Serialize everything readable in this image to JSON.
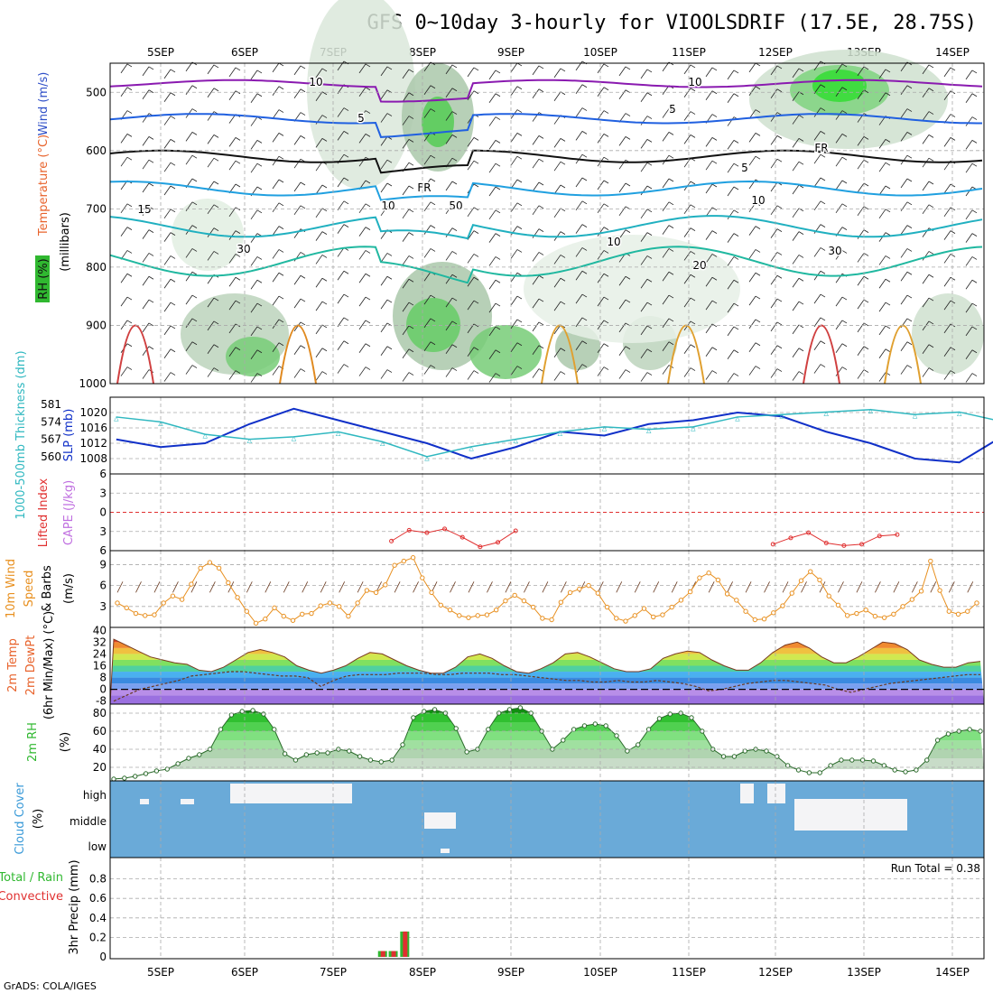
{
  "title": "GFS 0~10day 3-hourly for VIOOLSDRIF (17.5E, 28.75S)",
  "credit": "GrADS: COLA/IGES",
  "run_total": "Run Total = 0.38",
  "colors": {
    "frame": "#000000",
    "grid": "#a0a0a0",
    "temp_label": "#e8632c",
    "wind_label": "#3050c8",
    "rh_label": "#30b830",
    "slp": "#1030c8",
    "thickness": "#30b8c0",
    "cape": "#c070e0",
    "lifted": "#e03030",
    "wind10": "#e89020",
    "cloud": "#6aaad8",
    "rain_total": "#30b830",
    "rain_conv": "#e03030"
  },
  "chart_data": [
    {
      "panel": "upper-air",
      "type": "heatmap",
      "days": [
        "5SEP",
        "6SEP",
        "7SEP",
        "8SEP",
        "9SEP",
        "10SEP",
        "11SEP",
        "12SEP",
        "13SEP",
        "14SEP"
      ],
      "ylabel_parts": [
        "Wind (m/s)",
        "Temperature (°C)",
        "RH (%)",
        "(millibars)"
      ],
      "ylabel_wind": "Wind (m/s)",
      "ylabel_temp": "Temperature (°C)",
      "ylabel_rh": "RH (%)",
      "ylabel_p": "(millibars)",
      "yticks": [
        "500",
        "600",
        "700",
        "800",
        "900",
        "1000"
      ],
      "ylim": [
        1000,
        450
      ],
      "contour_labels": [
        "10",
        "10",
        "5",
        "5",
        "FR",
        "FR",
        "5",
        "10",
        "10",
        "15",
        "20",
        "30",
        "30",
        "10",
        "50"
      ]
    },
    {
      "panel": "slp-thickness",
      "type": "line",
      "ylabel_left": "1000-500mb Thickness (dm)",
      "ylabel_right": "SLP (mb)",
      "left_ticks": [
        "560",
        "567",
        "574",
        "581"
      ],
      "right_ticks": [
        "1008",
        "1012",
        "1016",
        "1020"
      ],
      "series": [
        {
          "name": "SLP (mb)",
          "x_days": [
            0,
            0.5,
            1,
            1.5,
            2,
            2.5,
            3,
            3.5,
            4,
            4.5,
            5,
            5.5,
            6,
            6.5,
            7,
            7.5,
            8,
            8.5,
            9,
            9.5,
            10
          ],
          "values": [
            1013,
            1011,
            1012,
            1017,
            1021,
            1018,
            1015,
            1012,
            1008,
            1011,
            1015,
            1014,
            1017,
            1018,
            1020,
            1019,
            1015,
            1012,
            1008,
            1007,
            1014
          ]
        },
        {
          "name": "1000-500mb Thickness (dm)",
          "x_days": [
            0,
            0.5,
            1,
            1.5,
            2,
            2.5,
            3,
            3.5,
            4,
            4.5,
            5,
            5.5,
            6,
            6.5,
            7,
            7.5,
            8,
            8.5,
            9,
            9.5,
            10
          ],
          "values": [
            576,
            574,
            569,
            567,
            568,
            570,
            566,
            560,
            564,
            567,
            570,
            572,
            571,
            572,
            576,
            577,
            578,
            579,
            577,
            578,
            574
          ]
        }
      ]
    },
    {
      "panel": "stability",
      "type": "line",
      "ylabel_lifted": "Lifted Index",
      "ylabel_cape": "CAPE (J/kg)",
      "yticks": [
        "-6",
        "-3",
        "0",
        "3",
        "6"
      ],
      "series": [
        {
          "name": "Lifted Index",
          "x_days": [
            3.1,
            3.3,
            3.5,
            3.7,
            3.9,
            4.1,
            4.3,
            4.5
          ],
          "values": [
            4.5,
            2.8,
            3.2,
            2.6,
            3.9,
            5.4,
            4.7,
            2.9
          ]
        },
        {
          "name": "Lifted Index",
          "x_days": [
            7.4,
            7.6,
            7.8,
            8.0,
            8.2,
            8.4,
            8.6,
            8.8
          ],
          "values": [
            5.0,
            4.0,
            3.2,
            4.8,
            5.2,
            5.0,
            3.7,
            3.5
          ]
        }
      ]
    },
    {
      "panel": "wind10",
      "type": "line",
      "ylabel": "10m Wind Speed & Barbs (m/s)",
      "ylabel_a": "10m Wind",
      "ylabel_b": "Speed",
      "ylabel_c": "& Barbs",
      "ylabel_units": "(m/s)",
      "yticks": [
        "3",
        "6",
        "9"
      ],
      "ylim": [
        0,
        11
      ],
      "series": [
        {
          "name": "10m Wind Speed",
          "values": [
            3.5,
            2.8,
            2.0,
            1.7,
            1.8,
            3.5,
            4.5,
            4.0,
            6.2,
            8.5,
            9.3,
            8.5,
            6.4,
            4.3,
            2.3,
            0.6,
            1.2,
            2.8,
            1.6,
            1.0,
            1.9,
            2.0,
            3.1,
            3.5,
            3.0,
            1.6,
            3.5,
            5.3,
            5.0,
            6.1,
            8.9,
            9.5,
            10.0,
            7.1,
            5.0,
            3.2,
            2.5,
            1.7,
            1.4,
            1.7,
            1.8,
            2.5,
            3.8,
            4.6,
            3.8,
            2.9,
            1.3,
            1.1,
            3.6,
            5.0,
            5.5,
            6.0,
            4.9,
            2.9,
            1.3,
            0.9,
            1.7,
            2.7,
            1.5,
            1.8,
            2.9,
            3.9,
            5.1,
            7.1,
            7.8,
            6.8,
            4.8,
            3.9,
            2.3,
            1.1,
            1.2,
            2.1,
            3.1,
            4.9,
            6.7,
            8.0,
            6.8,
            4.5,
            3.2,
            1.7,
            2.0,
            2.5,
            1.6,
            1.4,
            1.9,
            3.0,
            4.0,
            5.2,
            9.5,
            5.3,
            2.3,
            1.9,
            2.3,
            3.5
          ]
        }
      ]
    },
    {
      "panel": "temp2m",
      "type": "area",
      "ylabel": "2m Temp 2m DewPt (6hr Min/Max) (°C)",
      "ylabel_a": "2m Temp",
      "ylabel_b": "2m DewPt",
      "ylabel_c": "(6hr Min/Max) (°C)",
      "yticks": [
        "-8",
        "0",
        "8",
        "16",
        "24",
        "32",
        "40"
      ],
      "ylim": [
        -10,
        42
      ],
      "series": [
        {
          "name": "2m Temp",
          "values": [
            34,
            30,
            26,
            22,
            20,
            18,
            17,
            13,
            12,
            15,
            20,
            25,
            27,
            25,
            22,
            16,
            13,
            11,
            13,
            16,
            21,
            25,
            24,
            20,
            16,
            13,
            11,
            11,
            15,
            22,
            24,
            21,
            16,
            12,
            11,
            14,
            18,
            24,
            25,
            22,
            18,
            14,
            12,
            12,
            14,
            21,
            24,
            26,
            25,
            20,
            16,
            13,
            13,
            18,
            25,
            30,
            32,
            28,
            22,
            18,
            18,
            22,
            27,
            32,
            31,
            27,
            20,
            17,
            15,
            15,
            18,
            19
          ]
        },
        {
          "name": "2m DewPt",
          "values": [
            -8,
            -4,
            0,
            2,
            4,
            6,
            9,
            10,
            11,
            12,
            12,
            11,
            10,
            9,
            9,
            8,
            2,
            6,
            9,
            10,
            10,
            10,
            11,
            11,
            11,
            10,
            10,
            11,
            11,
            11,
            10,
            10,
            9,
            8,
            7,
            6,
            6,
            5,
            5,
            6,
            5,
            5,
            6,
            5,
            4,
            2,
            -1,
            0,
            2,
            4,
            5,
            6,
            6,
            5,
            4,
            3,
            0,
            -2,
            0,
            2,
            4,
            5,
            6,
            7,
            8,
            9,
            10,
            10
          ]
        }
      ]
    },
    {
      "panel": "rh2m",
      "type": "area",
      "ylabel": "2m RH (%)",
      "ylabel_a": "2m RH",
      "ylabel_b": "(%)",
      "yticks": [
        "20",
        "40",
        "60",
        "80"
      ],
      "ylim": [
        5,
        90
      ],
      "series": [
        {
          "name": "2m RH",
          "values": [
            7,
            8,
            10,
            13,
            16,
            18,
            24,
            30,
            34,
            40,
            62,
            78,
            82,
            83,
            79,
            62,
            35,
            28,
            34,
            36,
            36,
            40,
            38,
            32,
            28,
            26,
            28,
            45,
            75,
            82,
            84,
            80,
            63,
            37,
            40,
            62,
            80,
            84,
            86,
            80,
            60,
            40,
            50,
            62,
            66,
            68,
            66,
            55,
            38,
            45,
            62,
            74,
            79,
            80,
            75,
            60,
            40,
            32,
            32,
            38,
            40,
            38,
            32,
            22,
            17,
            14,
            14,
            22,
            28,
            28,
            28,
            27,
            22,
            17,
            15,
            17,
            28,
            50,
            57,
            60,
            62,
            60
          ]
        }
      ]
    },
    {
      "panel": "cloud",
      "type": "area",
      "ylabel": "Cloud Cover (%)",
      "ylabel_a": "Cloud Cover",
      "ylabel_b": "(%)",
      "levels": [
        "high",
        "middle",
        "low"
      ]
    },
    {
      "panel": "precip",
      "type": "bar",
      "ylabel": "3hr Precip (mm)",
      "legend_total": "Total / Rain",
      "legend_conv": "Convective",
      "yticks": [
        "0",
        "0.2",
        "0.4",
        "0.6",
        "0.8"
      ],
      "ylim": [
        0,
        1.0
      ],
      "series": [
        {
          "name": "Total / Rain",
          "x_days": [
            3.0,
            3.12,
            3.25
          ],
          "values": [
            0.06,
            0.06,
            0.26
          ]
        },
        {
          "name": "Convective",
          "x_days": [
            3.0,
            3.12,
            3.25
          ],
          "values": [
            0.06,
            0.06,
            0.26
          ]
        }
      ]
    }
  ]
}
